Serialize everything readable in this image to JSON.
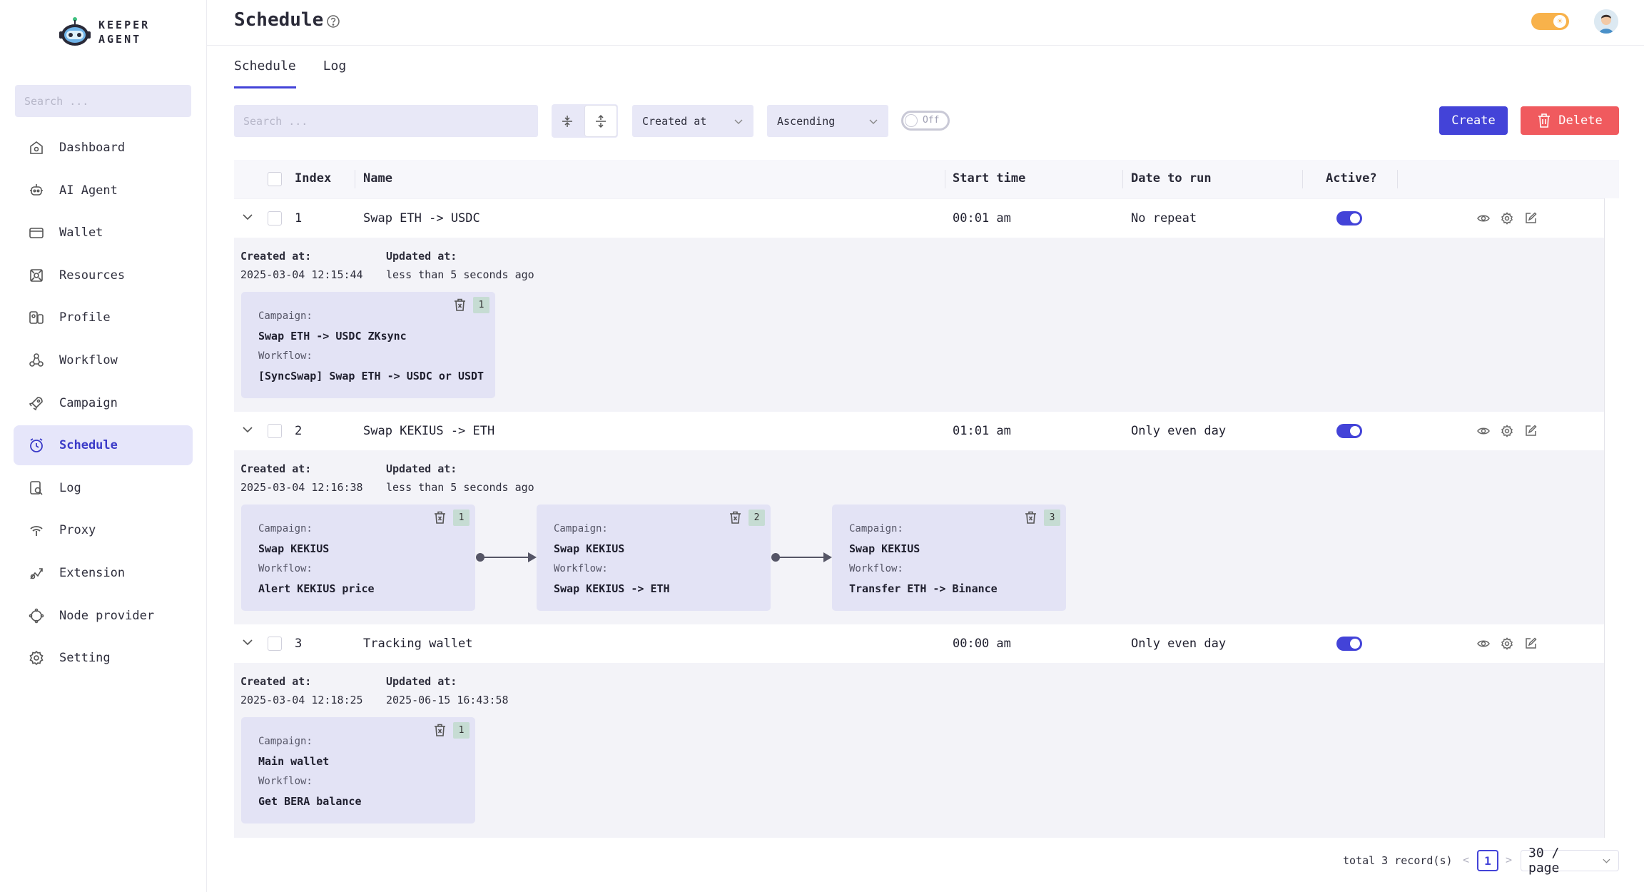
{
  "brand": {
    "line1": "KEEPER",
    "line2": "AGENT"
  },
  "sidebar": {
    "search_placeholder": "Search ...",
    "items": [
      {
        "label": "Dashboard",
        "icon": "home-icon"
      },
      {
        "label": "AI Agent",
        "icon": "robot-icon"
      },
      {
        "label": "Wallet",
        "icon": "wallet-icon"
      },
      {
        "label": "Resources",
        "icon": "resources-icon"
      },
      {
        "label": "Profile",
        "icon": "profile-icon"
      },
      {
        "label": "Workflow",
        "icon": "workflow-icon"
      },
      {
        "label": "Campaign",
        "icon": "rocket-icon"
      },
      {
        "label": "Schedule",
        "icon": "clock-icon",
        "active": true
      },
      {
        "label": "Log",
        "icon": "log-icon"
      },
      {
        "label": "Proxy",
        "icon": "proxy-icon"
      },
      {
        "label": "Extension",
        "icon": "extension-icon"
      },
      {
        "label": "Node provider",
        "icon": "node-icon"
      },
      {
        "label": "Setting",
        "icon": "gear-icon"
      }
    ]
  },
  "header": {
    "title": "Schedule"
  },
  "tabs": [
    {
      "label": "Schedule",
      "active": true
    },
    {
      "label": "Log"
    }
  ],
  "toolbar": {
    "search_placeholder": "Search ...",
    "sort_field": "Created at",
    "sort_order": "Ascending",
    "toggle_label": "Off",
    "create_label": "Create",
    "delete_label": "Delete"
  },
  "table": {
    "columns": {
      "index": "Index",
      "name": "Name",
      "start_time": "Start time",
      "date_to_run": "Date to run",
      "active": "Active?"
    },
    "rows": [
      {
        "index": "1",
        "name": "Swap ETH -> USDC",
        "start_time": "00:01 am",
        "date_to_run": "No repeat",
        "active": true,
        "created_label": "Created at:",
        "created": "2025-03-04 12:15:44",
        "updated_label": "Updated at:",
        "updated": "less than 5 seconds ago",
        "steps": [
          {
            "num": "1",
            "campaign_label": "Campaign:",
            "campaign": "Swap ETH -> USDC ZKsync",
            "workflow_label": "Workflow:",
            "workflow": "[SyncSwap] Swap ETH -> USDC or USDT"
          }
        ]
      },
      {
        "index": "2",
        "name": "Swap KEKIUS -> ETH",
        "start_time": "01:01 am",
        "date_to_run": "Only even day",
        "active": true,
        "created_label": "Created at:",
        "created": "2025-03-04 12:16:38",
        "updated_label": "Updated at:",
        "updated": "less than 5 seconds ago",
        "steps": [
          {
            "num": "1",
            "campaign_label": "Campaign:",
            "campaign": "Swap KEKIUS",
            "workflow_label": "Workflow:",
            "workflow": "Alert KEKIUS price"
          },
          {
            "num": "2",
            "campaign_label": "Campaign:",
            "campaign": "Swap KEKIUS",
            "workflow_label": "Workflow:",
            "workflow": "Swap KEKIUS -> ETH"
          },
          {
            "num": "3",
            "campaign_label": "Campaign:",
            "campaign": "Swap KEKIUS",
            "workflow_label": "Workflow:",
            "workflow": "Transfer ETH -> Binance"
          }
        ]
      },
      {
        "index": "3",
        "name": "Tracking wallet",
        "start_time": "00:00 am",
        "date_to_run": "Only even day",
        "active": true,
        "created_label": "Created at:",
        "created": "2025-03-04 12:18:25",
        "updated_label": "Updated at:",
        "updated": "2025-06-15 16:43:58",
        "steps": [
          {
            "num": "1",
            "campaign_label": "Campaign:",
            "campaign": "Main wallet",
            "workflow_label": "Workflow:",
            "workflow": "Get BERA balance"
          }
        ]
      }
    ]
  },
  "pagination": {
    "total": "total 3 record(s)",
    "current_page": "1",
    "page_size": "30 / page",
    "prev": "<",
    "next": ">"
  },
  "colors": {
    "accent": "#4343d8",
    "danger": "#f05a5e",
    "sidebar_active_bg": "#e6e6fa",
    "theme_toggle": "#f8b24b"
  }
}
